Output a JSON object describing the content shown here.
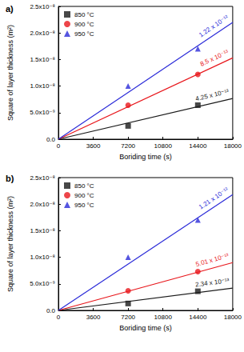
{
  "chart_data": [
    {
      "type": "scatter",
      "title": "a)",
      "x_label": "Boriding time (s)",
      "y_label": "Square of layer thickness (m²)",
      "xlim": [
        0,
        18000
      ],
      "xticks": [
        0,
        3600,
        7200,
        10800,
        14400,
        18000
      ],
      "ylim": [
        0,
        2.5e-08
      ],
      "yticks": [
        {
          "value": 0,
          "label": "0.0"
        },
        {
          "value": 5e-09,
          "label": "5.0x10⁻⁹"
        },
        {
          "value": 1e-08,
          "label": "1.0x10⁻⁸"
        },
        {
          "value": 1.5e-08,
          "label": "1.5x10⁻⁸"
        },
        {
          "value": 2e-08,
          "label": "2.0x10⁻⁸"
        },
        {
          "value": 2.5e-08,
          "label": "2.5x10⁻⁸"
        }
      ],
      "grid": false,
      "legend": "upper left",
      "series": [
        {
          "name": "850 °C",
          "color": "#1a1a1a",
          "marker": "square",
          "x": [
            7200,
            14400
          ],
          "values": [
            2.5e-09,
            6.4e-09
          ],
          "fit": {
            "x": [
              0,
              18000
            ],
            "values": [
              0,
              7.65e-09
            ],
            "label": "4.25 x 10⁻¹³"
          }
        },
        {
          "name": "900 °C",
          "color": "#e8161b",
          "marker": "circle",
          "x": [
            7200,
            14400
          ],
          "values": [
            6.4e-09,
            1.22e-08
          ],
          "fit": {
            "x": [
              0,
              18000
            ],
            "values": [
              0,
              1.53e-08
            ],
            "label": "8.5 x 10⁻¹³"
          }
        },
        {
          "name": "950 °C",
          "color": "#2a2ad8",
          "marker": "triangle",
          "x": [
            7200,
            14400
          ],
          "values": [
            1e-08,
            1.7e-08
          ],
          "fit": {
            "x": [
              0,
              18000
            ],
            "values": [
              0,
              2.2e-08
            ],
            "label": "1.22 x 10⁻¹²"
          }
        }
      ]
    },
    {
      "type": "scatter",
      "title": "b)",
      "x_label": "Boriding time (s)",
      "y_label": "Square of layer thickness (m²)",
      "xlim": [
        0,
        18000
      ],
      "xticks": [
        0,
        3600,
        7200,
        10800,
        14400,
        18000
      ],
      "ylim": [
        0,
        2.5e-08
      ],
      "yticks": [
        {
          "value": 0,
          "label": "0.0"
        },
        {
          "value": 5e-09,
          "label": "5.0x10⁻⁹"
        },
        {
          "value": 1e-08,
          "label": "1.0x10⁻⁸"
        },
        {
          "value": 1.5e-08,
          "label": "1.5x10⁻⁸"
        },
        {
          "value": 2e-08,
          "label": "2.0x10⁻⁸"
        },
        {
          "value": 2.5e-08,
          "label": "2.5x10⁻⁸"
        }
      ],
      "grid": false,
      "legend": "upper left",
      "series": [
        {
          "name": "850 °C",
          "color": "#1a1a1a",
          "marker": "square",
          "x": [
            7200,
            14400
          ],
          "values": [
            1.3e-09,
            3.6e-09
          ],
          "fit": {
            "x": [
              0,
              18000
            ],
            "values": [
              0,
              4.2e-09
            ],
            "label": "2.34 x 10⁻¹³"
          }
        },
        {
          "name": "900 °C",
          "color": "#e8161b",
          "marker": "circle",
          "x": [
            7200,
            14400
          ],
          "values": [
            3.7e-09,
            7.3e-09
          ],
          "fit": {
            "x": [
              0,
              18000
            ],
            "values": [
              0,
              9e-09
            ],
            "label": "5.01 x 10⁻¹³"
          }
        },
        {
          "name": "950 °C",
          "color": "#2a2ad8",
          "marker": "triangle",
          "x": [
            7200,
            14400
          ],
          "values": [
            1e-08,
            1.7e-08
          ],
          "fit": {
            "x": [
              0,
              18000
            ],
            "values": [
              0,
              2.18e-08
            ],
            "label": "1.21 x 10⁻¹²"
          }
        }
      ]
    }
  ]
}
